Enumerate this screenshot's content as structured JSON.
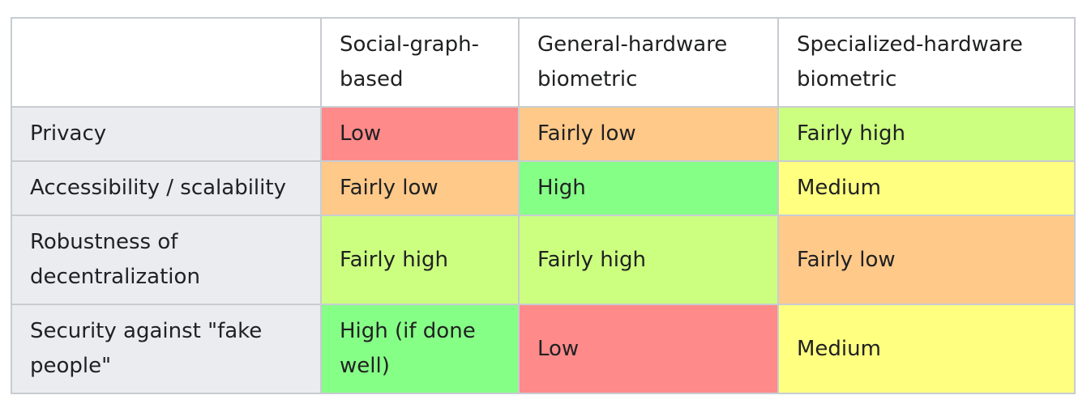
{
  "colors": {
    "low": "#ff8a8a",
    "fairly_low": "#ffc98a",
    "medium": "#ffff80",
    "fairly_high": "#ccff80",
    "high": "#86ff86",
    "row_header_bg": "#eaecf0",
    "border": "#c8ccd1"
  },
  "table": {
    "columns": [
      "",
      "Social-graph-based",
      "General-hardware biometric",
      "Specialized-hardware biometric"
    ],
    "rows": [
      {
        "label": "Privacy",
        "cells": [
          {
            "text": "Low",
            "rating": "low"
          },
          {
            "text": "Fairly low",
            "rating": "fairly_low"
          },
          {
            "text": "Fairly high",
            "rating": "fairly_high"
          }
        ]
      },
      {
        "label": "Accessibility / scalability",
        "cells": [
          {
            "text": "Fairly low",
            "rating": "fairly_low"
          },
          {
            "text": "High",
            "rating": "high"
          },
          {
            "text": "Medium",
            "rating": "medium"
          }
        ]
      },
      {
        "label": "Robustness of decentralization",
        "cells": [
          {
            "text": "Fairly high",
            "rating": "fairly_high"
          },
          {
            "text": "Fairly high",
            "rating": "fairly_high"
          },
          {
            "text": "Fairly low",
            "rating": "fairly_low"
          }
        ]
      },
      {
        "label": "Security against \"fake people\"",
        "cells": [
          {
            "text": "High (if done well)",
            "rating": "high"
          },
          {
            "text": "Low",
            "rating": "low"
          },
          {
            "text": "Medium",
            "rating": "medium"
          }
        ]
      }
    ]
  }
}
